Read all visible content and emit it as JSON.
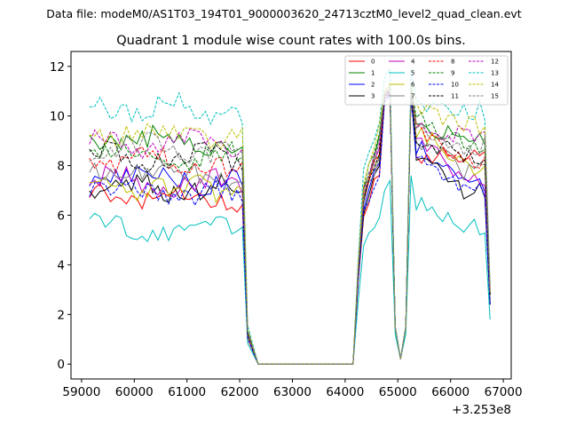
{
  "chart_data": {
    "type": "line",
    "suptitle": "Data file: modeM0/AS1T03_194T01_9000003620_24713cztM0_level2_quad_clean.evt",
    "title": "Quadrant 1 module wise count rates with 100.0s bins.",
    "xlabel": "",
    "ylabel": "",
    "offset_label": "+3.253e8",
    "xlim": [
      58800,
      67150
    ],
    "ylim": [
      -0.6,
      12.6
    ],
    "x_ticks": [
      59000,
      60000,
      61000,
      62000,
      63000,
      64000,
      65000,
      66000,
      67000
    ],
    "x_tick_labels": [
      "59000",
      "60000",
      "61000",
      "62000",
      "63000",
      "64000",
      "65000",
      "66000",
      "67000"
    ],
    "y_ticks": [
      0,
      2,
      4,
      6,
      8,
      10,
      12
    ],
    "y_tick_labels": [
      "0",
      "2",
      "4",
      "6",
      "8",
      "10",
      "12"
    ],
    "legend_position": "top-right",
    "x_segments": [
      {
        "start": 59150,
        "end": 62050,
        "step": 100
      },
      {
        "start": 62150,
        "end": 64150,
        "step": 200
      },
      {
        "start": 64250,
        "end": 66650,
        "step": 100
      },
      {
        "start": 66750,
        "end": 66750,
        "step": 100
      }
    ],
    "plateau_x": [
      64750,
      64850,
      64950,
      65050,
      65150,
      65250
    ],
    "plateau_values": {
      "0": [
        10.8,
        11.0,
        1.5,
        0.2,
        1.5,
        11.0
      ],
      "1": [
        10.9,
        11.1,
        1.5,
        0.2,
        1.5,
        11.1
      ],
      "2": [
        10.7,
        10.9,
        1.5,
        0.2,
        1.5,
        10.9
      ],
      "3": [
        10.8,
        11.0,
        1.5,
        0.2,
        1.5,
        11.0
      ],
      "4": [
        10.9,
        11.0,
        1.5,
        0.2,
        1.5,
        11.0
      ],
      "5": [
        7.0,
        7.4,
        1.2,
        0.2,
        1.2,
        7.6
      ],
      "6": [
        10.9,
        11.1,
        1.5,
        0.2,
        1.5,
        11.1
      ],
      "7": [
        10.8,
        11.0,
        1.5,
        0.2,
        1.5,
        11.0
      ],
      "8": [
        10.7,
        11.0,
        1.5,
        0.2,
        1.5,
        11.0
      ],
      "9": [
        11.0,
        11.2,
        1.5,
        0.2,
        1.5,
        11.2
      ],
      "10": [
        10.6,
        10.8,
        1.5,
        0.2,
        1.5,
        10.8
      ],
      "11": [
        10.8,
        11.0,
        1.5,
        0.2,
        1.5,
        11.0
      ],
      "12": [
        10.9,
        11.1,
        1.5,
        0.2,
        1.5,
        11.1
      ],
      "13": [
        11.6,
        11.9,
        1.5,
        0.2,
        1.5,
        11.9
      ],
      "14": [
        11.0,
        11.2,
        1.5,
        0.2,
        1.5,
        11.2
      ],
      "15": [
        10.9,
        11.1,
        1.5,
        0.2,
        1.5,
        11.1
      ]
    },
    "series": [
      {
        "name": "0",
        "color": "#ff0000",
        "dash": false,
        "level1": 6.8,
        "level2": 8.4,
        "level3": 8.4,
        "end": 2.4
      },
      {
        "name": "1",
        "color": "#008000",
        "dash": false,
        "level1": 9.1,
        "level2": 9.8,
        "level3": 9.0,
        "end": 3.0
      },
      {
        "name": "2",
        "color": "#0000ff",
        "dash": false,
        "level1": 7.6,
        "level2": 8.8,
        "level3": 7.2,
        "end": 2.4
      },
      {
        "name": "3",
        "color": "#000000",
        "dash": false,
        "level1": 7.2,
        "level2": 8.6,
        "level3": 7.0,
        "end": 2.4
      },
      {
        "name": "4",
        "color": "#bf00bf",
        "dash": false,
        "level1": 7.4,
        "level2": 9.2,
        "level3": 7.4,
        "end": 2.6
      },
      {
        "name": "5",
        "color": "#00bfbf",
        "dash": false,
        "level1": 5.6,
        "level2": 6.4,
        "level3": 5.6,
        "end": 1.8
      },
      {
        "name": "6",
        "color": "#bfbf00",
        "dash": false,
        "level1": 7.2,
        "level2": 9.4,
        "level3": 8.0,
        "end": 2.6
      },
      {
        "name": "7",
        "color": "#808080",
        "dash": false,
        "level1": 7.8,
        "level2": 9.0,
        "level3": 7.8,
        "end": 2.6
      },
      {
        "name": "8",
        "color": "#ff0000",
        "dash": true,
        "level1": 8.2,
        "level2": 9.3,
        "level3": 8.2,
        "end": 2.8
      },
      {
        "name": "9",
        "color": "#008000",
        "dash": true,
        "level1": 8.6,
        "level2": 10.0,
        "level3": 8.8,
        "end": 2.8
      },
      {
        "name": "10",
        "color": "#0000ff",
        "dash": true,
        "level1": 7.0,
        "level2": 8.4,
        "level3": 7.0,
        "end": 2.4
      },
      {
        "name": "11",
        "color": "#000000",
        "dash": true,
        "level1": 8.4,
        "level2": 9.2,
        "level3": 8.4,
        "end": 2.8
      },
      {
        "name": "12",
        "color": "#bf00bf",
        "dash": true,
        "level1": 9.0,
        "level2": 9.6,
        "level3": 9.2,
        "end": 3.0
      },
      {
        "name": "13",
        "color": "#00bfbf",
        "dash": true,
        "level1": 10.4,
        "level2": 10.6,
        "level3": 10.2,
        "end": 3.2
      },
      {
        "name": "14",
        "color": "#bfbf00",
        "dash": true,
        "level1": 9.4,
        "level2": 10.2,
        "level3": 9.6,
        "end": 3.0
      },
      {
        "name": "15",
        "color": "#808080",
        "dash": true,
        "level1": 8.8,
        "level2": 9.6,
        "level3": 8.8,
        "end": 2.9
      }
    ]
  }
}
